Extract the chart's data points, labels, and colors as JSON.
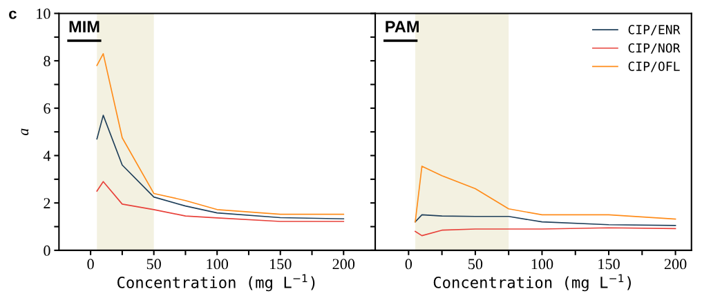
{
  "chart_data": [
    {
      "type": "line",
      "title": "MIM",
      "xlabel": "Concentration (mg L$^{−1}$)",
      "ylabel": "a",
      "annotations": [
        "c"
      ],
      "x": [
        5,
        10,
        25,
        50,
        75,
        100,
        150,
        200
      ],
      "xlim": [
        -25,
        225
      ],
      "xticks": [
        0,
        {
          "value": 25,
          "label": null
        },
        50,
        {
          "value": 75,
          "label": null
        },
        100,
        {
          "value": 125,
          "label": null
        },
        150,
        {
          "value": 175,
          "label": null
        },
        200
      ],
      "ylim": [
        0,
        10
      ],
      "yticks": [
        0,
        {
          "value": 1,
          "label": null
        },
        2,
        {
          "value": 3,
          "label": null
        },
        4,
        {
          "value": 5,
          "label": null
        },
        6,
        {
          "value": 7,
          "label": null
        },
        8,
        {
          "value": 9,
          "label": null
        },
        10
      ],
      "bands": [
        {
          "axis": "x",
          "from": 5,
          "to": 50,
          "color": "#f3f1e1"
        }
      ],
      "grid": false,
      "series": [
        {
          "color": "#1f3f5a",
          "values": [
            4.7,
            5.7,
            3.6,
            2.25,
            1.87,
            1.58,
            1.38,
            1.33
          ]
        },
        {
          "color": "#e8413a",
          "values": [
            2.5,
            2.9,
            1.95,
            1.72,
            1.45,
            1.37,
            1.22,
            1.22
          ]
        },
        {
          "color": "#ff8c1a",
          "values": [
            7.8,
            8.3,
            4.75,
            2.4,
            2.1,
            1.72,
            1.52,
            1.52
          ]
        }
      ]
    },
    {
      "type": "line",
      "title": "PAM",
      "xlabel": "Concentration (mg L$^{−1}$)",
      "x": [
        5,
        10,
        25,
        50,
        75,
        100,
        150,
        200
      ],
      "xlim": [
        -25,
        212
      ],
      "xticks": [
        0,
        {
          "value": 25,
          "label": null
        },
        50,
        {
          "value": 75,
          "label": null
        },
        100,
        {
          "value": 125,
          "label": null
        },
        150,
        {
          "value": 175,
          "label": null
        },
        200
      ],
      "ylim": [
        0,
        10
      ],
      "yticks": [
        0,
        {
          "value": 1,
          "label": null
        },
        2,
        {
          "value": 3,
          "label": null
        },
        4,
        {
          "value": 5,
          "label": null
        },
        6,
        {
          "value": 7,
          "label": null
        },
        8,
        {
          "value": 9,
          "label": null
        },
        10
      ],
      "tick_labels": "x",
      "bands": [
        {
          "axis": "x",
          "from": 5,
          "to": 75,
          "color": "#f3f1e1"
        }
      ],
      "grid": false,
      "legend": "top right",
      "series": [
        {
          "name": "CIP/ENR",
          "color": "#1f3f5a",
          "values": [
            1.2,
            1.5,
            1.45,
            1.43,
            1.43,
            1.2,
            1.08,
            1.05
          ]
        },
        {
          "name": "CIP/NOR",
          "color": "#e8413a",
          "values": [
            0.8,
            0.62,
            0.85,
            0.9,
            0.9,
            0.9,
            0.95,
            0.92
          ]
        },
        {
          "name": "CIP/OFL",
          "color": "#ff8c1a",
          "values": [
            1.2,
            3.55,
            3.15,
            2.6,
            1.75,
            1.5,
            1.5,
            1.32
          ]
        }
      ]
    }
  ]
}
